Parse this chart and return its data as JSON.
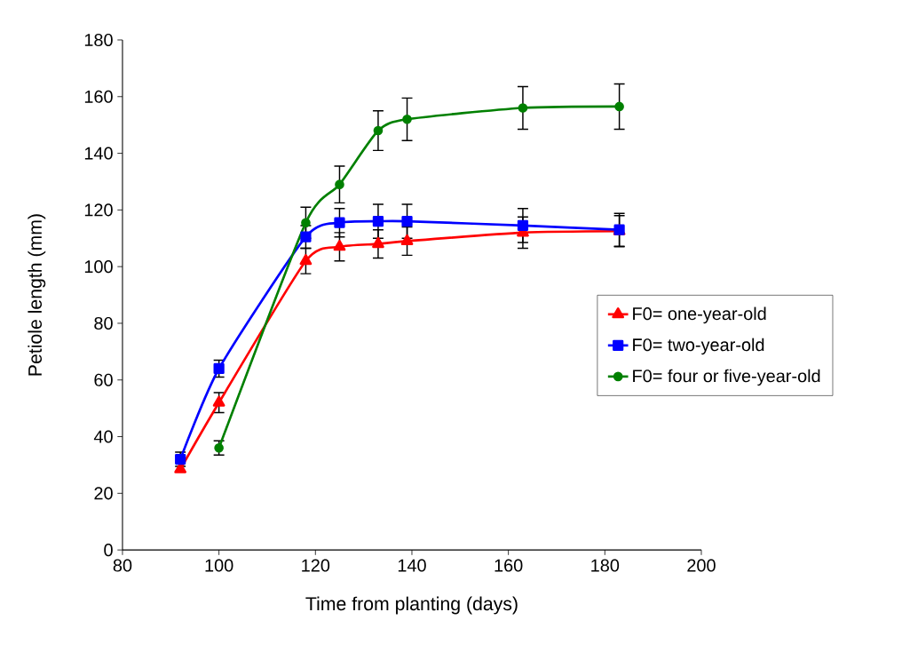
{
  "chart_data": {
    "type": "line",
    "xlabel": "Time from planting (days)",
    "ylabel": "Petiole length (mm)",
    "xlim": [
      80,
      200
    ],
    "xticks": [
      80,
      100,
      120,
      140,
      160,
      180,
      200
    ],
    "ylim": [
      0,
      180
    ],
    "yticks": [
      0,
      20,
      40,
      60,
      80,
      100,
      120,
      140,
      160,
      180
    ],
    "grid": false,
    "legend": "right",
    "line_style": "solid",
    "series": [
      {
        "name": "F0= one-year-old",
        "color": "#ff0000",
        "marker": "triangle",
        "x": [
          92,
          100,
          118,
          125,
          133,
          139,
          163,
          183
        ],
        "values": [
          28.5,
          52,
          102,
          107,
          108,
          109,
          112,
          112.5
        ],
        "errors": [
          null,
          3.5,
          4.5,
          5,
          5,
          5,
          5.5,
          5.5
        ]
      },
      {
        "name": "F0= two-year-old",
        "color": "#0000ff",
        "marker": "square",
        "x": [
          92,
          100,
          118,
          125,
          133,
          139,
          163,
          183
        ],
        "values": [
          32,
          64,
          110.5,
          115.5,
          116,
          116,
          114.5,
          113
        ],
        "errors": [
          2.5,
          3,
          4,
          5,
          6,
          6,
          6,
          5.8
        ]
      },
      {
        "name": "F0= four or five-year-old",
        "color": "#008000",
        "marker": "circle",
        "x": [
          100,
          118,
          125,
          133,
          139,
          163,
          183
        ],
        "values": [
          36,
          115.5,
          129,
          148,
          152,
          156,
          156.5
        ],
        "errors": [
          2.5,
          5.5,
          6.5,
          7,
          7.5,
          7.5,
          8
        ]
      }
    ]
  }
}
